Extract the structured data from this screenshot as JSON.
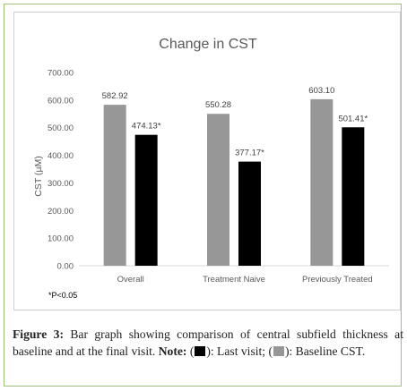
{
  "chart_data": {
    "type": "bar",
    "title": "Change in CST",
    "ylabel": "CST (µM)",
    "xlabel": "",
    "ylim": [
      0,
      700
    ],
    "yticks": [
      "0.00",
      "100.00",
      "200.00",
      "300.00",
      "400.00",
      "500.00",
      "600.00",
      "700.00"
    ],
    "categories": [
      "Overall",
      "Treatment Naive",
      "Previously Treated"
    ],
    "series": [
      {
        "name": "Baseline CST",
        "color": "#979797",
        "values": [
          582.92,
          550.28,
          603.1
        ],
        "labels": [
          "582.92",
          "550.28",
          "603.10"
        ]
      },
      {
        "name": "Last visit",
        "color": "#000000",
        "values": [
          474.13,
          377.17,
          501.41
        ],
        "labels": [
          "474.13*",
          "377.17*",
          "501.41*"
        ]
      }
    ],
    "annotation": "*P<0.05",
    "grid": false
  },
  "caption": {
    "label": "Figure 3:",
    "text": "Bar graph showing comparison of central subfield thickness at baseline and at the final visit.",
    "note_label": "Note:",
    "legend_open": "(",
    "last_visit": "): Last visit; (",
    "baseline": "): Baseline CST."
  }
}
